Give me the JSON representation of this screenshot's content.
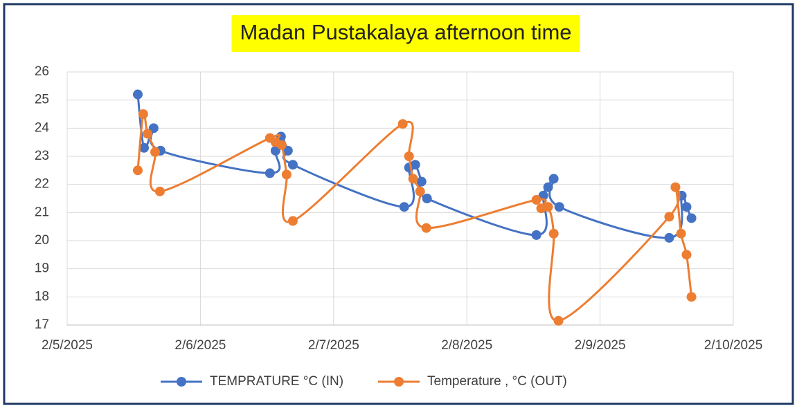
{
  "chart_data": {
    "type": "scatter-smooth",
    "title": "Madan Pustakalaya afternoon time",
    "xlim": [
      45693,
      45698
    ],
    "xticks": [
      {
        "value": 45693,
        "label": "2/5/2025"
      },
      {
        "value": 45694,
        "label": "2/6/2025"
      },
      {
        "value": 45695,
        "label": "2/7/2025"
      },
      {
        "value": 45696,
        "label": "2/8/2025"
      },
      {
        "value": 45697,
        "label": "2/9/2025"
      },
      {
        "value": 45698,
        "label": "2/10/2025"
      }
    ],
    "ylim": [
      17,
      26
    ],
    "yticks": [
      17,
      18,
      19,
      20,
      21,
      22,
      23,
      24,
      25,
      26
    ],
    "grid": true,
    "legend": "bottom",
    "series": [
      {
        "name": "TEMPRATURE °C (IN)",
        "color": "#4472c4",
        "x": [
          45693.53,
          45693.577,
          45693.649,
          45693.701,
          45694.522,
          45694.564,
          45694.605,
          45694.657,
          45694.694,
          45695.53,
          45695.566,
          45695.613,
          45695.66,
          45695.701,
          45696.522,
          45696.574,
          45696.61,
          45696.652,
          45696.694,
          45697.519,
          45697.613,
          45697.649,
          45697.686
        ],
        "values": [
          25.2,
          23.3,
          24.0,
          23.2,
          22.4,
          23.2,
          23.7,
          23.2,
          22.7,
          21.2,
          22.6,
          22.7,
          22.1,
          21.5,
          20.2,
          21.6,
          21.9,
          22.2,
          21.2,
          20.1,
          21.6,
          21.2,
          20.8
        ]
      },
      {
        "name": "Temperature , °C (OUT)",
        "color": "#ed7d31",
        "x": [
          45693.53,
          45693.571,
          45693.603,
          45693.66,
          45693.696,
          45694.522,
          45694.564,
          45694.61,
          45694.647,
          45694.694,
          45695.519,
          45695.566,
          45695.597,
          45695.649,
          45695.696,
          45696.522,
          45696.558,
          45696.61,
          45696.652,
          45696.688,
          45697.519,
          45697.566,
          45697.608,
          45697.649,
          45697.686
        ],
        "values": [
          22.5,
          24.5,
          23.8,
          23.15,
          21.75,
          23.65,
          23.5,
          23.4,
          22.35,
          20.7,
          24.15,
          23.0,
          22.2,
          21.75,
          20.45,
          21.45,
          21.15,
          21.2,
          20.25,
          17.15,
          20.85,
          21.9,
          20.25,
          19.5,
          18.0
        ]
      }
    ]
  }
}
